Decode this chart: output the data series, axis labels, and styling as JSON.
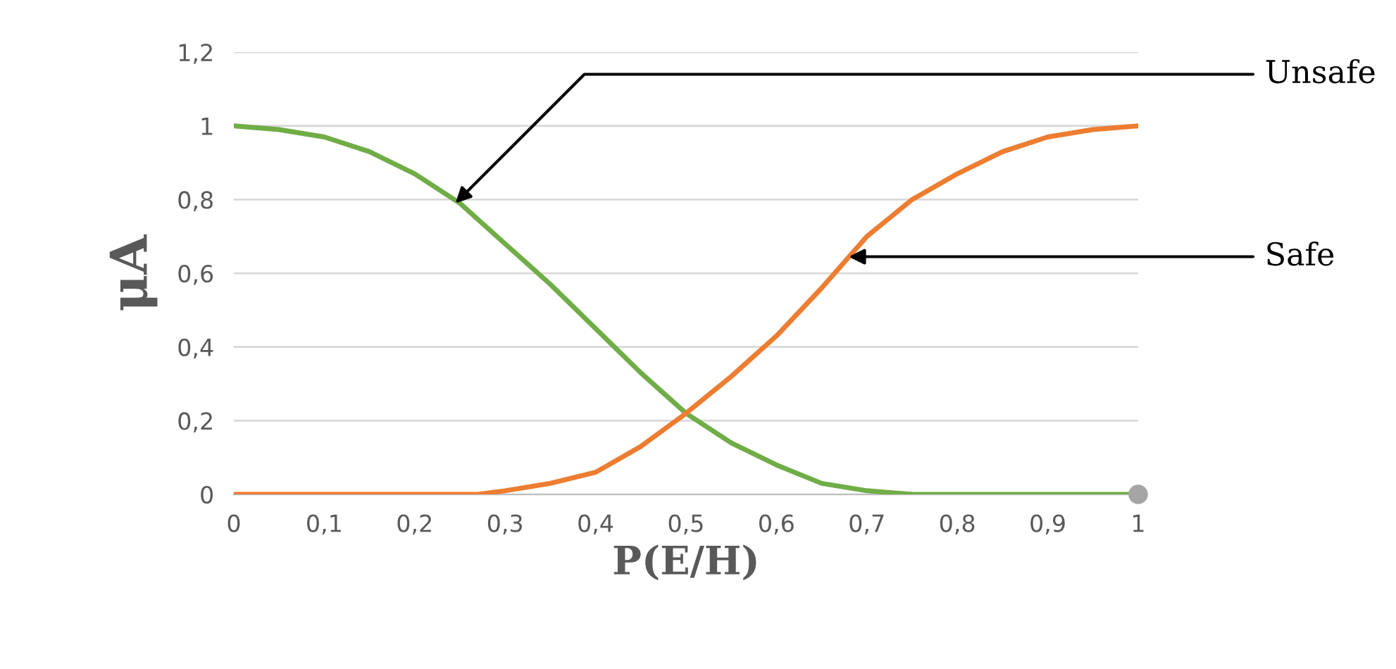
{
  "chart_data": {
    "type": "line",
    "xlabel": "P(E/H)",
    "ylabel": "μA",
    "series": [
      {
        "color": "#70ad47",
        "x": [
          0,
          0.05,
          0.1,
          0.15,
          0.2,
          0.25,
          0.3,
          0.35,
          0.4,
          0.45,
          0.5,
          0.55,
          0.6,
          0.65,
          0.7,
          0.75,
          0.8,
          0.85,
          0.9,
          0.95,
          1
        ],
        "values": [
          1,
          0.99,
          0.97,
          0.93,
          0.87,
          0.79,
          0.68,
          0.57,
          0.45,
          0.33,
          0.22,
          0.14,
          0.08,
          0.03,
          0.01,
          0,
          0,
          0,
          0,
          0,
          0
        ]
      },
      {
        "color": "#ed7d31",
        "x": [
          0,
          0.05,
          0.1,
          0.15,
          0.2,
          0.25,
          0.27,
          0.3,
          0.35,
          0.4,
          0.45,
          0.5,
          0.55,
          0.6,
          0.65,
          0.7,
          0.75,
          0.8,
          0.85,
          0.9,
          0.95,
          1
        ],
        "values": [
          0,
          0,
          0,
          0,
          0,
          0,
          0,
          0.01,
          0.03,
          0.06,
          0.13,
          0.22,
          0.32,
          0.43,
          0.56,
          0.7,
          0.8,
          0.87,
          0.93,
          0.97,
          0.99,
          1
        ]
      },
      {
        "type": "scatter",
        "color": "#a5a5a5",
        "x": [
          1
        ],
        "values": [
          0
        ],
        "marker": "circle"
      }
    ],
    "xlim": [
      0,
      1
    ],
    "ylim": [
      0,
      1.2
    ],
    "xticks": [
      0,
      {
        "value": 0.1,
        "label": "0,1"
      },
      {
        "value": 0.2,
        "label": "0,2"
      },
      {
        "value": 0.3,
        "label": "0,3"
      },
      {
        "value": 0.4,
        "label": "0,4"
      },
      {
        "value": 0.5,
        "label": "0,5"
      },
      {
        "value": 0.6,
        "label": "0,6"
      },
      {
        "value": 0.7,
        "label": "0,7"
      },
      {
        "value": 0.8,
        "label": "0,8"
      },
      {
        "value": 0.9,
        "label": "0,9"
      },
      1
    ],
    "yticks": [
      0,
      {
        "value": 0.2,
        "label": "0,2"
      },
      {
        "value": 0.4,
        "label": "0,4"
      },
      {
        "value": 0.6,
        "label": "0,6"
      },
      {
        "value": 0.8,
        "label": "0,8"
      },
      1,
      {
        "value": 1.2,
        "label": "1,2"
      }
    ],
    "grid": "y",
    "annotations": [
      {
        "text": "Unsafe",
        "x": 0.245,
        "y": 0.79
      },
      {
        "text": "Safe",
        "x": 0.68,
        "y": 0.645
      }
    ]
  }
}
